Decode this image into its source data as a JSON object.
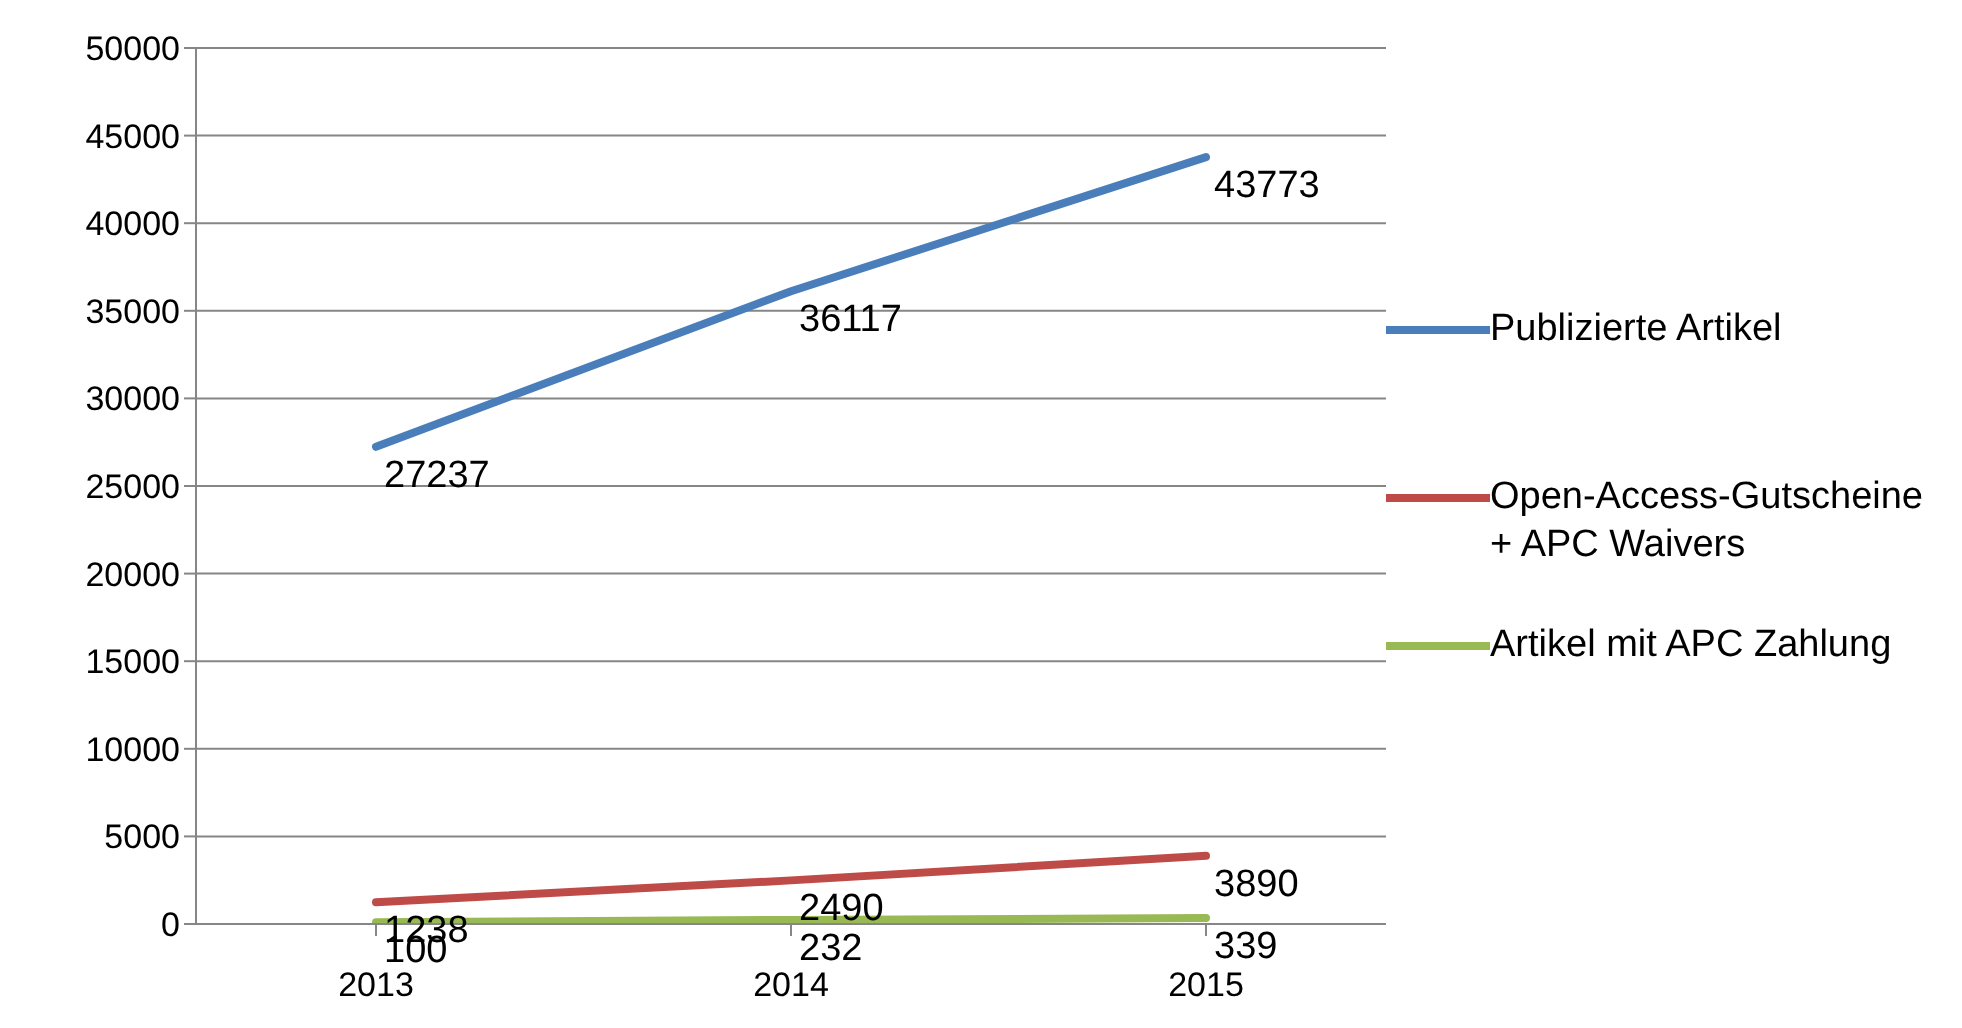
{
  "chart_data": {
    "type": "line",
    "categories": [
      "2013",
      "2014",
      "2015"
    ],
    "series": [
      {
        "name": "Publizierte Artikel",
        "color": "#4a7ebb",
        "values": [
          27237,
          36117,
          43773
        ]
      },
      {
        "name": "Open-Access-Gutscheine + APC Waivers",
        "color": "#be4b48",
        "values": [
          1238,
          2490,
          3890
        ]
      },
      {
        "name": "Artikel mit APC Zahlung",
        "color": "#98b954",
        "values": [
          100,
          232,
          339
        ]
      }
    ],
    "ylim": [
      0,
      50000
    ],
    "yticks": [
      0,
      5000,
      10000,
      15000,
      20000,
      25000,
      30000,
      35000,
      40000,
      45000,
      50000
    ],
    "grid": "y",
    "legend": "right",
    "data_labels": true,
    "marker": "none",
    "line_style": "solid"
  }
}
